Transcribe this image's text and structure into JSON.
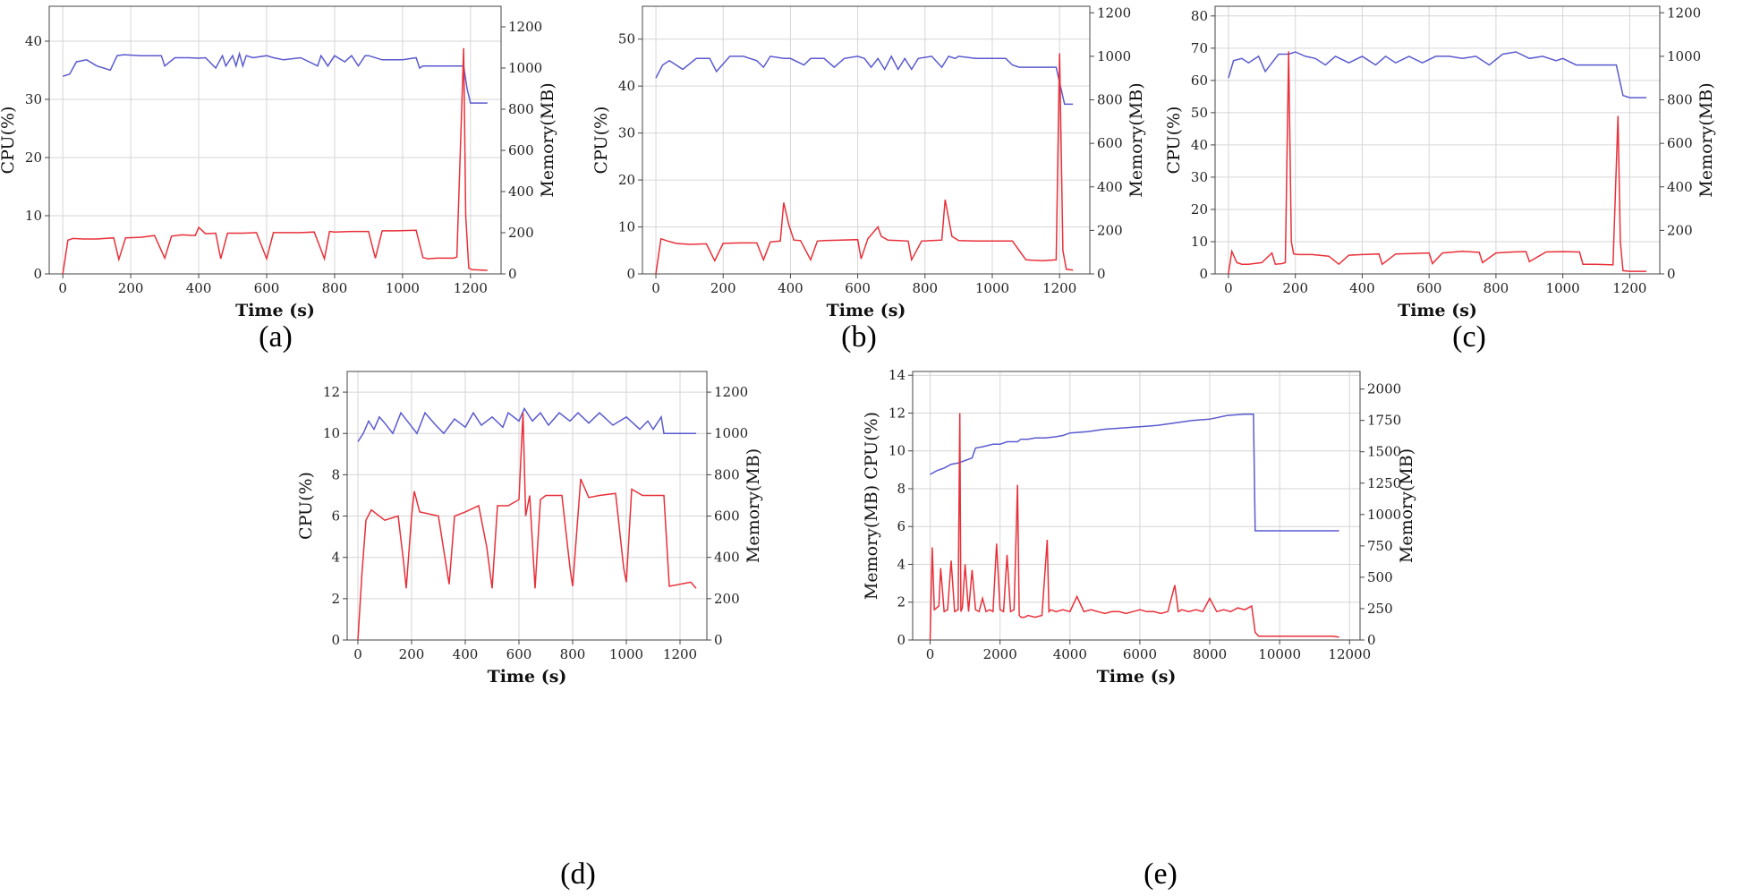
{
  "panels": [
    {
      "id": "a",
      "caption": "(a)",
      "xlabel": "Time (s)",
      "ylabel_left": "CPU(%)",
      "ylabel_right": "Memory(MB)",
      "xlim": [
        -40,
        1290
      ],
      "ylim_left": [
        0,
        46
      ],
      "ylim_right": [
        0,
        1300
      ],
      "xticks": [
        0,
        200,
        400,
        600,
        800,
        1000,
        1200
      ],
      "yticks_left": [
        0,
        10,
        20,
        30,
        40
      ],
      "yticks_right": [
        0,
        200,
        400,
        600,
        800,
        1000,
        1200
      ],
      "cpu_x": [
        0,
        15,
        30,
        60,
        100,
        150,
        165,
        185,
        230,
        270,
        300,
        320,
        350,
        390,
        400,
        420,
        450,
        465,
        485,
        530,
        570,
        600,
        620,
        650,
        700,
        740,
        770,
        785,
        800,
        850,
        900,
        920,
        940,
        980,
        1040,
        1060,
        1075,
        1100,
        1150,
        1160,
        1180,
        1186,
        1195,
        1205,
        1215,
        1250
      ],
      "cpu_y": [
        0,
        5.8,
        6.1,
        6.0,
        6.0,
        6.2,
        2.5,
        6.2,
        6.3,
        6.6,
        2.7,
        6.5,
        6.7,
        6.6,
        8.0,
        6.9,
        7.0,
        2.6,
        7.0,
        7.0,
        7.1,
        2.6,
        7.1,
        7.1,
        7.1,
        7.2,
        2.6,
        7.3,
        7.2,
        7.3,
        7.3,
        2.7,
        7.4,
        7.4,
        7.5,
        2.8,
        2.6,
        2.7,
        2.7,
        2.9,
        38.8,
        10.0,
        1.0,
        0.7,
        0.7,
        0.6
      ],
      "mem_x": [
        0,
        20,
        40,
        70,
        100,
        140,
        160,
        180,
        230,
        290,
        300,
        330,
        370,
        400,
        420,
        450,
        470,
        480,
        500,
        510,
        520,
        530,
        540,
        560,
        600,
        620,
        650,
        700,
        750,
        760,
        780,
        800,
        830,
        850,
        870,
        890,
        900,
        940,
        1000,
        1040,
        1050,
        1060,
        1100,
        1150,
        1180,
        1190,
        1200,
        1250
      ],
      "mem_y": [
        960,
        970,
        1030,
        1040,
        1010,
        990,
        1060,
        1065,
        1060,
        1060,
        1010,
        1050,
        1050,
        1048,
        1050,
        1000,
        1060,
        1010,
        1060,
        1010,
        1070,
        1010,
        1060,
        1050,
        1060,
        1050,
        1040,
        1050,
        1010,
        1060,
        1010,
        1060,
        1030,
        1060,
        1010,
        1060,
        1060,
        1040,
        1040,
        1050,
        1000,
        1010,
        1010,
        1010,
        1010,
        900,
        830,
        830
      ]
    },
    {
      "id": "b",
      "caption": "(b)",
      "xlabel": "Time (s)",
      "ylabel_left": "CPU(%)",
      "ylabel_right": "Memory(MB)",
      "xlim": [
        -40,
        1290
      ],
      "ylim_left": [
        0,
        57
      ],
      "ylim_right": [
        0,
        1230
      ],
      "xticks": [
        0,
        200,
        400,
        600,
        800,
        1000,
        1200
      ],
      "yticks_left": [
        0,
        10,
        20,
        30,
        40,
        50
      ],
      "yticks_right": [
        0,
        200,
        400,
        600,
        800,
        1000,
        1200
      ],
      "cpu_x": [
        0,
        15,
        35,
        60,
        100,
        150,
        175,
        200,
        250,
        300,
        320,
        340,
        370,
        380,
        395,
        410,
        430,
        460,
        480,
        500,
        550,
        600,
        610,
        630,
        660,
        670,
        690,
        720,
        750,
        760,
        790,
        820,
        850,
        860,
        880,
        900,
        950,
        1000,
        1060,
        1100,
        1120,
        1150,
        1190,
        1200,
        1210,
        1220,
        1240
      ],
      "cpu_y": [
        0,
        7.5,
        7.0,
        6.5,
        6.3,
        6.4,
        2.8,
        6.5,
        6.6,
        6.6,
        3.0,
        6.8,
        7.0,
        15.2,
        10.5,
        7.2,
        7.1,
        3.0,
        7.0,
        7.1,
        7.2,
        7.3,
        3.2,
        7.5,
        10.0,
        8.0,
        7.2,
        7.1,
        7.0,
        3.0,
        7.0,
        7.1,
        7.2,
        15.8,
        8.0,
        7.1,
        7.0,
        7.0,
        7.0,
        3.0,
        2.9,
        2.8,
        3.0,
        47.0,
        5.0,
        1.0,
        0.8
      ],
      "mem_x": [
        0,
        20,
        40,
        80,
        120,
        160,
        180,
        220,
        260,
        300,
        320,
        340,
        380,
        400,
        440,
        460,
        500,
        530,
        560,
        600,
        620,
        640,
        660,
        680,
        700,
        720,
        740,
        760,
        780,
        820,
        850,
        870,
        890,
        900,
        950,
        1000,
        1040,
        1060,
        1080,
        1100,
        1150,
        1190,
        1200,
        1215,
        1240
      ],
      "mem_y": [
        900,
        960,
        980,
        940,
        990,
        990,
        930,
        1000,
        1000,
        980,
        950,
        1000,
        990,
        990,
        960,
        990,
        990,
        950,
        990,
        1000,
        990,
        950,
        990,
        940,
        1000,
        940,
        990,
        940,
        990,
        1000,
        950,
        1000,
        990,
        1000,
        990,
        990,
        990,
        960,
        950,
        950,
        950,
        950,
        880,
        780,
        780
      ]
    },
    {
      "id": "c",
      "caption": "(c)",
      "xlabel": "Time (s)",
      "ylabel_left": "CPU(%)",
      "ylabel_right": "Memory(MB)",
      "xlim": [
        -40,
        1290
      ],
      "ylim_left": [
        0,
        83
      ],
      "ylim_right": [
        0,
        1230
      ],
      "xticks": [
        0,
        200,
        400,
        600,
        800,
        1000,
        1200
      ],
      "yticks_left": [
        0,
        10,
        20,
        30,
        40,
        50,
        60,
        70,
        80
      ],
      "yticks_right": [
        0,
        200,
        400,
        600,
        800,
        1000,
        1200
      ],
      "cpu_x": [
        0,
        10,
        25,
        40,
        60,
        100,
        130,
        140,
        160,
        170,
        180,
        188,
        195,
        210,
        250,
        300,
        330,
        360,
        400,
        450,
        460,
        500,
        550,
        600,
        610,
        640,
        700,
        750,
        760,
        800,
        850,
        890,
        900,
        950,
        1000,
        1050,
        1060,
        1100,
        1150,
        1165,
        1172,
        1180,
        1200,
        1250
      ],
      "cpu_y": [
        0,
        7.0,
        3.5,
        3.0,
        3.0,
        3.5,
        6.5,
        3.0,
        3.2,
        3.5,
        69.0,
        10.0,
        6.2,
        6.0,
        6.0,
        5.5,
        3.0,
        5.8,
        6.0,
        6.2,
        3.0,
        6.2,
        6.3,
        6.5,
        3.2,
        6.5,
        7.0,
        6.7,
        3.5,
        6.5,
        6.8,
        6.9,
        3.8,
        6.8,
        6.9,
        6.8,
        3.0,
        3.0,
        2.8,
        49.0,
        10.0,
        1.0,
        0.8,
        0.8
      ],
      "mem_x": [
        0,
        15,
        40,
        60,
        90,
        110,
        130,
        150,
        180,
        200,
        230,
        260,
        290,
        320,
        360,
        400,
        440,
        470,
        500,
        540,
        580,
        620,
        660,
        700,
        740,
        780,
        820,
        860,
        900,
        940,
        980,
        1000,
        1040,
        1060,
        1100,
        1150,
        1160,
        1180,
        1200,
        1250
      ],
      "mem_y": [
        900,
        980,
        990,
        970,
        1000,
        930,
        970,
        1010,
        1010,
        1020,
        1000,
        990,
        960,
        1000,
        970,
        1000,
        960,
        1000,
        970,
        1000,
        970,
        1000,
        1000,
        990,
        1000,
        960,
        1010,
        1020,
        990,
        1000,
        980,
        990,
        960,
        960,
        960,
        960,
        960,
        820,
        810,
        810
      ]
    },
    {
      "id": "d",
      "caption": "(d)",
      "xlabel": "Time (s)",
      "ylabel_left": "CPU(%)",
      "ylabel_right": "Memory(MB)",
      "xlim": [
        -40,
        1300
      ],
      "ylim_left": [
        0,
        13
      ],
      "ylim_right": [
        0,
        1300
      ],
      "xticks": [
        0,
        200,
        400,
        600,
        800,
        1000,
        1200
      ],
      "yticks_left": [
        0,
        2,
        4,
        6,
        8,
        10,
        12
      ],
      "yticks_right": [
        0,
        200,
        400,
        600,
        800,
        1000,
        1200
      ],
      "cpu_x": [
        0,
        15,
        30,
        50,
        100,
        150,
        170,
        180,
        200,
        210,
        230,
        300,
        330,
        340,
        360,
        400,
        450,
        480,
        500,
        520,
        560,
        600,
        615,
        625,
        640,
        660,
        680,
        700,
        760,
        790,
        800,
        830,
        860,
        900,
        960,
        990,
        1000,
        1020,
        1060,
        1100,
        1140,
        1160,
        1200,
        1240,
        1260
      ],
      "cpu_y": [
        0,
        3.2,
        5.8,
        6.3,
        5.8,
        6.0,
        3.8,
        2.5,
        6.0,
        7.2,
        6.2,
        6.0,
        3.5,
        2.7,
        6.0,
        6.2,
        6.5,
        4.5,
        2.5,
        6.5,
        6.5,
        6.8,
        11.0,
        6.0,
        7.0,
        2.5,
        6.8,
        7.0,
        7.0,
        3.5,
        2.6,
        7.8,
        6.9,
        7.0,
        7.1,
        3.5,
        2.8,
        7.3,
        7.0,
        7.0,
        7.0,
        2.6,
        2.7,
        2.8,
        2.5
      ],
      "mem_x": [
        0,
        20,
        40,
        60,
        80,
        100,
        130,
        160,
        190,
        220,
        250,
        290,
        320,
        360,
        400,
        430,
        460,
        500,
        540,
        560,
        600,
        620,
        650,
        680,
        710,
        750,
        790,
        820,
        860,
        900,
        950,
        1000,
        1050,
        1080,
        1100,
        1130,
        1140,
        1160,
        1200,
        1260
      ],
      "mem_y": [
        960,
        1000,
        1060,
        1020,
        1080,
        1050,
        1000,
        1100,
        1050,
        1000,
        1100,
        1040,
        1000,
        1070,
        1030,
        1100,
        1040,
        1080,
        1030,
        1100,
        1060,
        1120,
        1060,
        1100,
        1040,
        1100,
        1060,
        1100,
        1050,
        1100,
        1040,
        1080,
        1020,
        1060,
        1020,
        1080,
        1000,
        1000,
        1000,
        1000
      ]
    },
    {
      "id": "e",
      "caption": "(e)",
      "xlabel": "Time (s)",
      "ylabel_left": "Memory(MB) CPU(%)",
      "ylabel_right": "Memory(MB)",
      "xlim": [
        -500,
        12300
      ],
      "ylim_left": [
        0,
        14.2
      ],
      "ylim_right": [
        0,
        2140
      ],
      "xticks": [
        0,
        2000,
        4000,
        6000,
        8000,
        10000,
        12000
      ],
      "yticks_left": [
        0,
        2,
        4,
        6,
        8,
        10,
        12,
        14
      ],
      "yticks_right": [
        0,
        250,
        500,
        750,
        1000,
        1250,
        1500,
        1750,
        2000
      ],
      "cpu_x": [
        0,
        60,
        120,
        250,
        300,
        400,
        500,
        600,
        700,
        800,
        850,
        880,
        920,
        1000,
        1100,
        1200,
        1300,
        1400,
        1500,
        1600,
        1700,
        1800,
        1900,
        2000,
        2100,
        2200,
        2300,
        2400,
        2500,
        2550,
        2600,
        2700,
        2800,
        3000,
        3200,
        3350,
        3400,
        3450,
        3600,
        3800,
        4000,
        4200,
        4400,
        4600,
        4800,
        5000,
        5200,
        5400,
        5600,
        5800,
        6000,
        6200,
        6400,
        6600,
        6800,
        7000,
        7100,
        7200,
        7400,
        7600,
        7800,
        8000,
        8200,
        8400,
        8600,
        8800,
        9000,
        9200,
        9300,
        9400,
        9600,
        10000,
        10500,
        11000,
        11500,
        11700
      ],
      "cpu_y": [
        0,
        4.9,
        1.6,
        1.8,
        3.8,
        1.5,
        1.6,
        4.2,
        1.5,
        1.6,
        12.0,
        1.5,
        1.7,
        4.0,
        1.5,
        3.7,
        1.6,
        1.5,
        2.2,
        1.5,
        1.6,
        1.5,
        5.1,
        1.6,
        1.5,
        4.5,
        1.5,
        1.6,
        8.2,
        1.3,
        1.2,
        1.2,
        1.3,
        1.2,
        1.3,
        5.3,
        1.5,
        1.6,
        1.5,
        1.6,
        1.5,
        2.3,
        1.5,
        1.6,
        1.5,
        1.4,
        1.5,
        1.5,
        1.4,
        1.5,
        1.6,
        1.5,
        1.5,
        1.4,
        1.5,
        2.9,
        1.5,
        1.6,
        1.5,
        1.6,
        1.5,
        2.2,
        1.5,
        1.6,
        1.5,
        1.7,
        1.6,
        1.8,
        0.4,
        0.2,
        0.2,
        0.2,
        0.2,
        0.2,
        0.2,
        0.15
      ],
      "mem_x": [
        0,
        200,
        400,
        600,
        800,
        1000,
        1200,
        1300,
        1500,
        1800,
        2000,
        2200,
        2500,
        2600,
        2800,
        3000,
        3300,
        3600,
        3800,
        4000,
        4500,
        5000,
        5500,
        6000,
        6500,
        7000,
        7500,
        8000,
        8500,
        9000,
        9250,
        9300,
        9400,
        10000,
        11000,
        11700
      ],
      "mem_y": [
        1320,
        1350,
        1370,
        1400,
        1410,
        1430,
        1450,
        1530,
        1540,
        1560,
        1560,
        1580,
        1580,
        1600,
        1600,
        1610,
        1610,
        1620,
        1630,
        1650,
        1660,
        1680,
        1690,
        1700,
        1710,
        1730,
        1750,
        1760,
        1790,
        1800,
        1800,
        870,
        870,
        870,
        870,
        870
      ]
    }
  ],
  "style": {
    "cpu_color": "#e8303a",
    "mem_color": "#5a5acf",
    "grid_color": "#d6d6d6",
    "axis_color": "#444444"
  }
}
